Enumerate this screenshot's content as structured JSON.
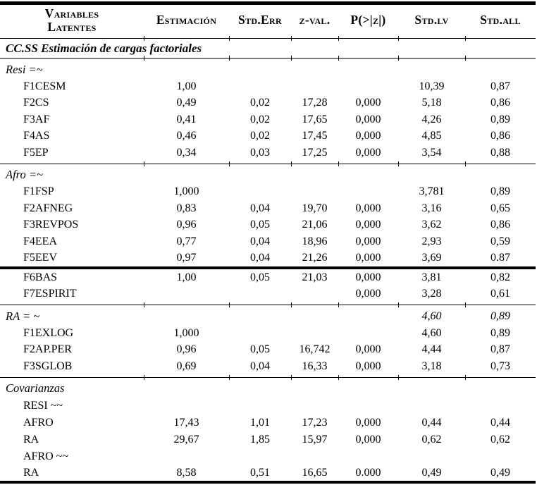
{
  "colors": {
    "text": "#000000",
    "background": "#ffffff",
    "rule": "#000000"
  },
  "table": {
    "columns": [
      {
        "key": "variables",
        "label": "Variables Latentes"
      },
      {
        "key": "estimacion",
        "label": "Estimación"
      },
      {
        "key": "std_err",
        "label": "Std.Err"
      },
      {
        "key": "z_val",
        "label": "z-val."
      },
      {
        "key": "p_z",
        "label": "P(>|z|)"
      },
      {
        "key": "std_lv",
        "label": "Std.lv"
      },
      {
        "key": "std_all",
        "label": "Std.all"
      }
    ],
    "rows": [
      {
        "kind": "rule"
      },
      {
        "kind": "section",
        "label": "CC.SS Estimación de cargas factoriales"
      },
      {
        "kind": "rule"
      },
      {
        "kind": "group",
        "label": "Resi =~"
      },
      {
        "kind": "data",
        "label": "F1CESM",
        "cells": [
          "1,00",
          "",
          "",
          "",
          "10,39",
          "0,87"
        ]
      },
      {
        "kind": "data",
        "label": "F2CS",
        "cells": [
          "0,49",
          "0,02",
          "17,28",
          "0,000",
          "5,18",
          "0,86"
        ]
      },
      {
        "kind": "data",
        "label": "F3AF",
        "cells": [
          "0,41",
          "0,02",
          "17,65",
          "0,000",
          "4,26",
          "0,89"
        ]
      },
      {
        "kind": "data",
        "label": "F4AS",
        "cells": [
          "0,46",
          "0,02",
          "17,45",
          "0,000",
          "4,85",
          "0,86"
        ]
      },
      {
        "kind": "data",
        "label": "F5EP",
        "cells": [
          "0,34",
          "0,03",
          "17,25",
          "0,000",
          "3,54",
          "0,88"
        ]
      },
      {
        "kind": "rule"
      },
      {
        "kind": "group",
        "label": "Afro =~"
      },
      {
        "kind": "data",
        "label": "F1FSP",
        "cells": [
          "1,000",
          "",
          "",
          "",
          "3,781",
          "0,89"
        ]
      },
      {
        "kind": "data",
        "label": "F2AFNEG",
        "cells": [
          "0,83",
          "0,04",
          "19,70",
          "0,000",
          "3,16",
          "0,65"
        ]
      },
      {
        "kind": "data",
        "label": "F3REVPOS",
        "cells": [
          "0,96",
          "0,05",
          "21,06",
          "0,000",
          "3,62",
          "0,86"
        ]
      },
      {
        "kind": "data",
        "label": "F4EEA",
        "cells": [
          "0,77",
          "0,04",
          "18,96",
          "0,000",
          "2,93",
          "0,59"
        ]
      },
      {
        "kind": "data",
        "label": "F5EEV",
        "cells": [
          "0,97",
          "0,04",
          "21,26",
          "0,000",
          "3,69",
          "0.87"
        ]
      },
      {
        "kind": "rule-thick"
      },
      {
        "kind": "data",
        "label": "F6BAS",
        "cells": [
          "1,00",
          "0,05",
          "21,03",
          "0,000",
          "3,81",
          "0,82"
        ]
      },
      {
        "kind": "data",
        "label": "F7ESPIRIT",
        "cells": [
          "",
          "",
          "",
          "0,000",
          "3,28",
          "0,61"
        ]
      },
      {
        "kind": "rule"
      },
      {
        "kind": "group",
        "label": "RA = ~",
        "cells": [
          "",
          "",
          "",
          "",
          "4,60",
          "0,89"
        ],
        "italicCells": true
      },
      {
        "kind": "data",
        "label": "F1EXLOG",
        "cells": [
          "1,000",
          "",
          "",
          "",
          "4,60",
          "0,89"
        ]
      },
      {
        "kind": "data",
        "label": "F2AP.PER",
        "cells": [
          "0,96",
          "0,05",
          "16,742",
          "0,000",
          "4,44",
          "0,87"
        ]
      },
      {
        "kind": "data",
        "label": "F3SGLOB",
        "cells": [
          "0,69",
          "0,04",
          "16,33",
          "0,000",
          "3,18",
          "0,73"
        ]
      },
      {
        "kind": "rule"
      },
      {
        "kind": "group",
        "label": "Covarianzas"
      },
      {
        "kind": "subgroup",
        "label": "RESI ~~"
      },
      {
        "kind": "data",
        "label": "AFRO",
        "cells": [
          "17,43",
          "1,01",
          "17,23",
          "0,000",
          "0,44",
          "0,44"
        ]
      },
      {
        "kind": "data",
        "label": "RA",
        "cells": [
          "29,67",
          "1,85",
          "15,97",
          "0,000",
          "0,62",
          "0,62"
        ]
      },
      {
        "kind": "subgroup",
        "label": "AFRO ~~"
      },
      {
        "kind": "data",
        "label": "RA",
        "cells": [
          "8,58",
          "0,51",
          "16,65",
          "0.000",
          "0,49",
          "0,49"
        ]
      }
    ]
  }
}
